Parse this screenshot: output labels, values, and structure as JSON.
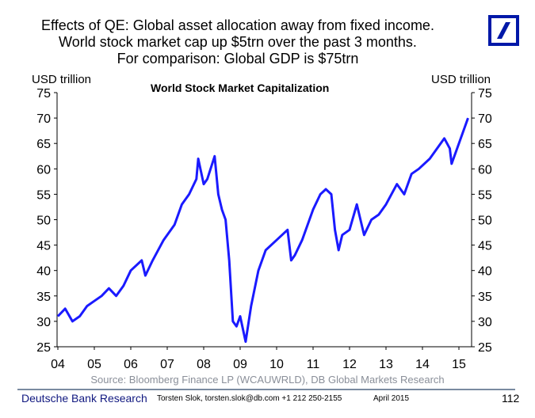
{
  "header": {
    "title_lines": [
      "Effects of QE: Global asset allocation away from fixed income.",
      "World stock market cap up $5trn over the past 3 months.",
      "For comparison: Global GDP is $75trn"
    ],
    "logo_color": "#0018a8"
  },
  "chart_data": {
    "type": "line",
    "title": "World Stock Market Capitalization",
    "ylabel_left": "USD trillion",
    "ylabel_right": "USD trillion",
    "ylim": [
      25,
      75
    ],
    "yticks": [
      25,
      30,
      35,
      40,
      45,
      50,
      55,
      60,
      65,
      70,
      75
    ],
    "xlim": [
      2004,
      2015.35
    ],
    "xticks": [
      2004,
      2005,
      2006,
      2007,
      2008,
      2009,
      2010,
      2011,
      2012,
      2013,
      2014,
      2015
    ],
    "xtick_labels": [
      "04",
      "05",
      "06",
      "07",
      "08",
      "09",
      "10",
      "11",
      "12",
      "13",
      "14",
      "15"
    ],
    "series": [
      {
        "name": "World Stock Market Capitalization",
        "color": "#1a1aff",
        "x": [
          2004.0,
          2004.2,
          2004.4,
          2004.6,
          2004.8,
          2005.0,
          2005.2,
          2005.4,
          2005.6,
          2005.8,
          2006.0,
          2006.3,
          2006.4,
          2006.6,
          2006.9,
          2007.2,
          2007.4,
          2007.6,
          2007.8,
          2007.85,
          2008.0,
          2008.1,
          2008.3,
          2008.4,
          2008.5,
          2008.6,
          2008.7,
          2008.8,
          2008.9,
          2009.0,
          2009.15,
          2009.3,
          2009.5,
          2009.7,
          2010.0,
          2010.3,
          2010.4,
          2010.5,
          2010.7,
          2011.0,
          2011.2,
          2011.35,
          2011.5,
          2011.6,
          2011.7,
          2011.8,
          2012.0,
          2012.2,
          2012.4,
          2012.6,
          2012.8,
          2013.0,
          2013.3,
          2013.5,
          2013.7,
          2013.9,
          2014.2,
          2014.4,
          2014.6,
          2014.75,
          2014.8,
          2015.0,
          2015.1,
          2015.25
        ],
        "y": [
          31,
          32.5,
          30,
          31,
          33,
          34,
          35,
          36.5,
          35,
          37,
          40,
          42,
          39,
          42,
          46,
          49,
          53,
          55,
          58,
          62,
          57,
          58,
          62.5,
          55,
          52,
          50,
          42,
          30,
          29,
          31,
          26,
          33,
          40,
          44,
          46,
          48,
          42,
          43,
          46,
          52,
          55,
          56,
          55,
          48,
          44,
          47,
          48,
          53,
          47,
          50,
          51,
          53,
          57,
          55,
          59,
          60,
          62,
          64,
          66,
          64,
          61,
          65,
          67,
          70
        ]
      }
    ]
  },
  "source": "Source: Bloomberg Finance LP (WCAUWRLD), DB Global Markets Research",
  "footer": {
    "brand": "Deutsche Bank Research",
    "contact": "Torsten Slok, torsten.slok@db.com  +1 212 250-2155",
    "date": "April 2015",
    "page": "112"
  }
}
